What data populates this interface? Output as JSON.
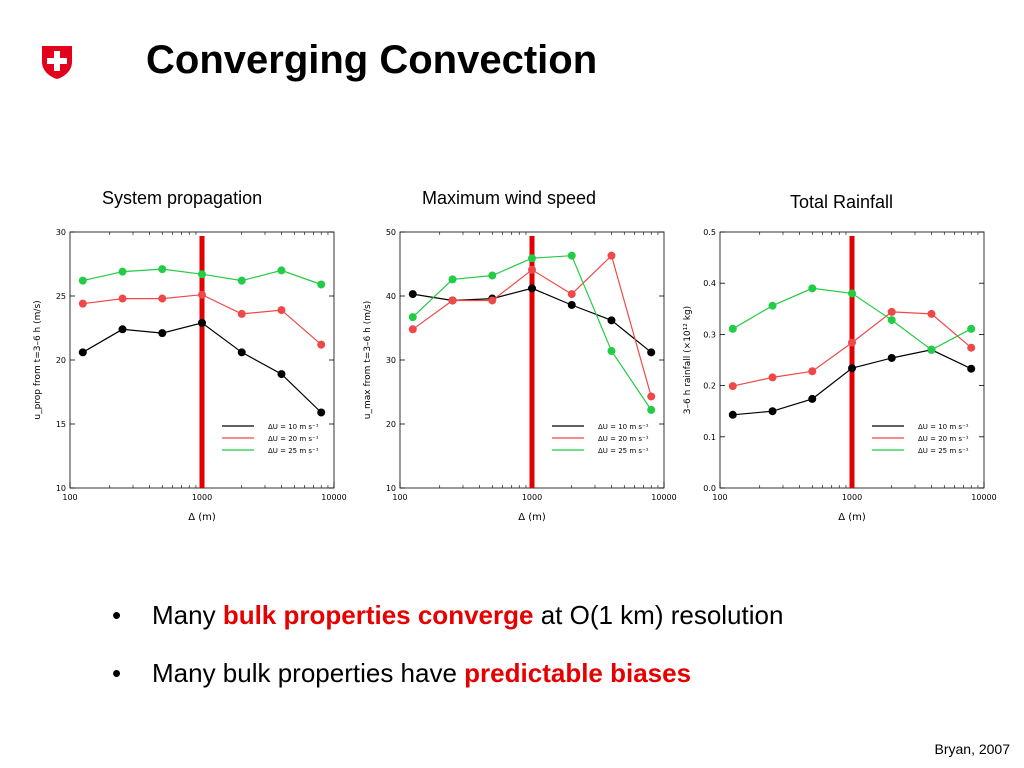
{
  "slide": {
    "title": "Converging Convection",
    "credit": "Bryan, 2007"
  },
  "bullets": [
    {
      "pre": "Many ",
      "highlight": "bulk properties converge",
      "post": " at O(1 km) resolution"
    },
    {
      "pre": "Many bulk properties have ",
      "highlight": "predictable biases",
      "post": ""
    }
  ],
  "colors": {
    "title": "#000000",
    "highlight": "#e60000",
    "logo": "#e3001b",
    "marker_line": "#e00000",
    "series": [
      "#000000",
      "#f04848",
      "#22cc44"
    ]
  },
  "legend_labels": [
    "ΔU = 10 m s⁻¹",
    "ΔU = 20 m s⁻¹",
    "ΔU = 25 m s⁻¹"
  ],
  "chart_data": [
    {
      "type": "line",
      "title": "System propagation",
      "xlabel": "Δ (m)",
      "ylabel": "u_prop from t=3–6 h (m/s)",
      "xscale": "log",
      "xlim": [
        100,
        10000
      ],
      "ylim": [
        10,
        30
      ],
      "yticks": [
        10,
        15,
        20,
        25,
        30
      ],
      "xticks": [
        100,
        1000,
        10000
      ],
      "vline": 1000,
      "legend": "bottom-right",
      "x": [
        125,
        250,
        500,
        1000,
        2000,
        4000,
        8000
      ],
      "series": [
        {
          "name": "ΔU = 10 m s⁻¹",
          "values": [
            20.6,
            22.4,
            22.1,
            22.9,
            20.6,
            18.9,
            15.9
          ]
        },
        {
          "name": "ΔU = 20 m s⁻¹",
          "values": [
            24.4,
            24.8,
            24.8,
            25.1,
            23.6,
            23.9,
            21.2
          ]
        },
        {
          "name": "ΔU = 25 m s⁻¹",
          "values": [
            26.2,
            26.9,
            27.1,
            26.7,
            26.2,
            27.0,
            25.9
          ]
        }
      ]
    },
    {
      "type": "line",
      "title": "Maximum wind speed",
      "xlabel": "Δ (m)",
      "ylabel": "u_max from t=3–6 h (m/s)",
      "xscale": "log",
      "xlim": [
        100,
        10000
      ],
      "ylim": [
        10,
        50
      ],
      "yticks": [
        10,
        20,
        30,
        40,
        50
      ],
      "xticks": [
        100,
        1000,
        10000
      ],
      "vline": 1000,
      "legend": "bottom-right",
      "x": [
        125,
        250,
        500,
        1000,
        2000,
        4000,
        8000
      ],
      "series": [
        {
          "name": "ΔU = 10 m s⁻¹",
          "values": [
            40.3,
            39.3,
            39.6,
            41.2,
            38.6,
            36.2,
            31.2
          ]
        },
        {
          "name": "ΔU = 20 m s⁻¹",
          "values": [
            34.8,
            39.3,
            39.3,
            44.1,
            40.3,
            46.3,
            24.3
          ]
        },
        {
          "name": "ΔU = 25 m s⁻¹",
          "values": [
            36.7,
            42.6,
            43.2,
            45.9,
            46.3,
            31.4,
            22.2
          ]
        }
      ]
    },
    {
      "type": "line",
      "title": "Total Rainfall",
      "xlabel": "Δ (m)",
      "ylabel": "3–6 h rainfall (×10¹² kg)",
      "xscale": "log",
      "xlim": [
        100,
        10000
      ],
      "ylim": [
        0.0,
        0.5
      ],
      "yticks": [
        0.0,
        0.1,
        0.2,
        0.3,
        0.4,
        0.5
      ],
      "xticks": [
        100,
        1000,
        10000
      ],
      "vline": 1000,
      "legend": "bottom-right",
      "x": [
        125,
        250,
        500,
        1000,
        2000,
        4000,
        8000
      ],
      "series": [
        {
          "name": "ΔU = 10 m s⁻¹",
          "values": [
            0.143,
            0.15,
            0.174,
            0.234,
            0.254,
            0.27,
            0.233
          ]
        },
        {
          "name": "ΔU = 20 m s⁻¹",
          "values": [
            0.199,
            0.216,
            0.228,
            0.284,
            0.344,
            0.34,
            0.274
          ]
        },
        {
          "name": "ΔU = 25 m s⁻¹",
          "values": [
            0.311,
            0.356,
            0.39,
            0.38,
            0.328,
            0.27,
            0.311
          ]
        }
      ]
    }
  ]
}
